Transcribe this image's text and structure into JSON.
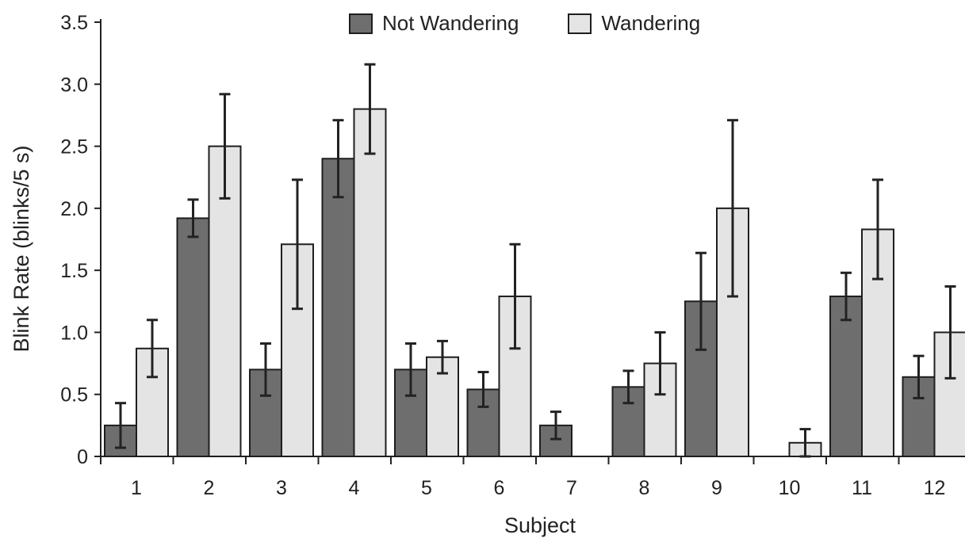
{
  "chart_data": {
    "type": "bar",
    "title": "",
    "xlabel": "Subject",
    "ylabel": "Blink Rate (blinks/5 s)",
    "ylim": [
      0,
      3.5
    ],
    "yticks": [
      "0",
      "0.5",
      "1.0",
      "1.5",
      "2.0",
      "2.5",
      "3.0",
      "3.5"
    ],
    "grid": false,
    "legend_position": "top-center",
    "categories": [
      "1",
      "2",
      "3",
      "4",
      "5",
      "6",
      "7",
      "8",
      "9",
      "10",
      "11",
      "12"
    ],
    "series": [
      {
        "name": "Not Wandering",
        "color": "#6e6e6e",
        "values": [
          0.25,
          1.92,
          0.7,
          2.4,
          0.7,
          0.54,
          0.25,
          0.56,
          1.25,
          0.0,
          1.29,
          0.64
        ],
        "error": [
          0.18,
          0.15,
          0.21,
          0.31,
          0.21,
          0.14,
          0.11,
          0.13,
          0.39,
          0.0,
          0.19,
          0.17
        ]
      },
      {
        "name": "Wandering",
        "color": "#e4e4e4",
        "values": [
          0.87,
          2.5,
          1.71,
          2.8,
          0.8,
          1.29,
          0.0,
          0.75,
          2.0,
          0.11,
          1.83,
          1.0
        ],
        "error": [
          0.23,
          0.42,
          0.52,
          0.36,
          0.13,
          0.42,
          0.0,
          0.25,
          0.71,
          0.11,
          0.4,
          0.37
        ]
      }
    ]
  }
}
